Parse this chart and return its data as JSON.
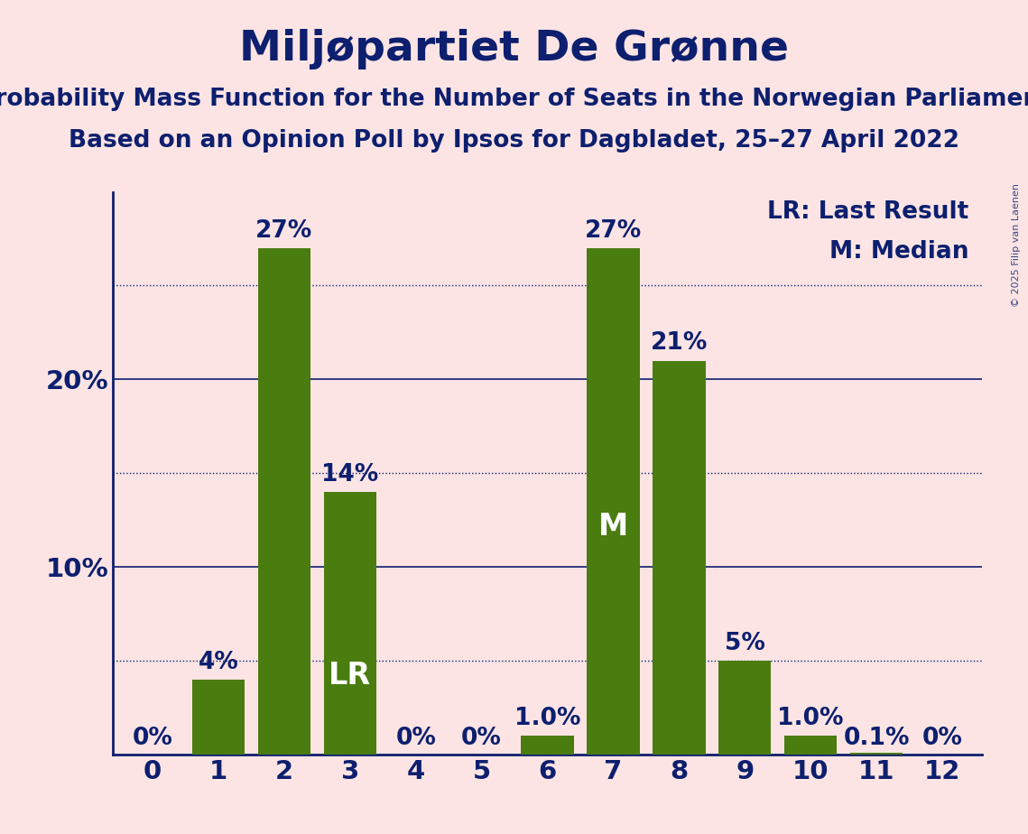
{
  "title": "Miljøpartiet De Grønne",
  "subtitle1": "Probability Mass Function for the Number of Seats in the Norwegian Parliament",
  "subtitle2": "Based on an Opinion Poll by Ipsos for Dagbladet, 25–27 April 2022",
  "copyright": "© 2025 Filip van Laenen",
  "categories": [
    0,
    1,
    2,
    3,
    4,
    5,
    6,
    7,
    8,
    9,
    10,
    11,
    12
  ],
  "values": [
    0.0,
    4.0,
    27.0,
    14.0,
    0.0,
    0.0,
    1.0,
    27.0,
    21.0,
    5.0,
    1.0,
    0.1,
    0.0
  ],
  "labels": [
    "0%",
    "4%",
    "27%",
    "14%",
    "0%",
    "0%",
    "1.0%",
    "27%",
    "21%",
    "5%",
    "1.0%",
    "0.1%",
    "0%"
  ],
  "bar_color": "#4a7c10",
  "background_color": "#fce4e4",
  "text_color": "#0d1f6e",
  "lr_bar": 3,
  "median_bar": 7,
  "lr_label": "LR",
  "median_label": "M",
  "legend_lr": "LR: Last Result",
  "legend_m": "M: Median",
  "solid_gridlines": [
    10,
    20
  ],
  "dotted_gridlines": [
    5,
    15,
    25
  ],
  "ylim": [
    0,
    30
  ],
  "title_fontsize": 34,
  "subtitle_fontsize": 19,
  "tick_fontsize": 21,
  "bar_label_fontsize": 19,
  "legend_fontsize": 19,
  "lr_m_fontsize": 24,
  "watermark_fontsize": 8,
  "ytick_positions": [
    10,
    20
  ],
  "ytick_labels": [
    "10%",
    "20%"
  ]
}
